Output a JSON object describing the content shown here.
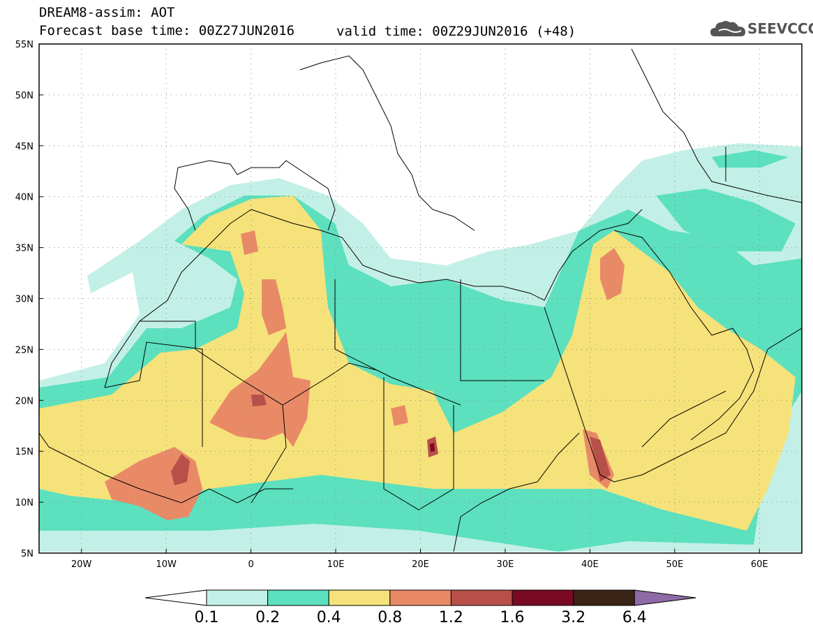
{
  "header": {
    "line1": "DREAM8-assim: AOT",
    "line2": "Forecast base time: 00Z27JUN2016",
    "valid": "valid time: 00Z29JUN2016 (+48)"
  },
  "logo": {
    "text": "SEEVCCC",
    "icon": "cloud-icon"
  },
  "map": {
    "lon_range": [
      -25,
      65
    ],
    "lat_range": [
      5,
      55
    ],
    "lat_ticks": [
      "55N",
      "50N",
      "45N",
      "40N",
      "35N",
      "30N",
      "25N",
      "20N",
      "15N",
      "10N",
      "5N"
    ],
    "lon_ticks": [
      "20W",
      "10W",
      "0",
      "10E",
      "20E",
      "30E",
      "40E",
      "50E",
      "60E"
    ],
    "lat_tick_values": [
      55,
      50,
      45,
      40,
      35,
      30,
      25,
      20,
      15,
      10,
      5
    ],
    "lon_tick_values": [
      -20,
      -10,
      0,
      10,
      20,
      30,
      40,
      50,
      60
    ],
    "grid": true
  },
  "legend": {
    "thresholds": [
      "0.1",
      "0.2",
      "0.4",
      "0.8",
      "1.2",
      "1.6",
      "3.2",
      "6.4"
    ],
    "colors": [
      "#ffffff",
      "#c3f0e6",
      "#5ce0be",
      "#f5e27a",
      "#e98a67",
      "#b8504a",
      "#7a0a24",
      "#3b2416",
      "#8e6aa6"
    ]
  }
}
